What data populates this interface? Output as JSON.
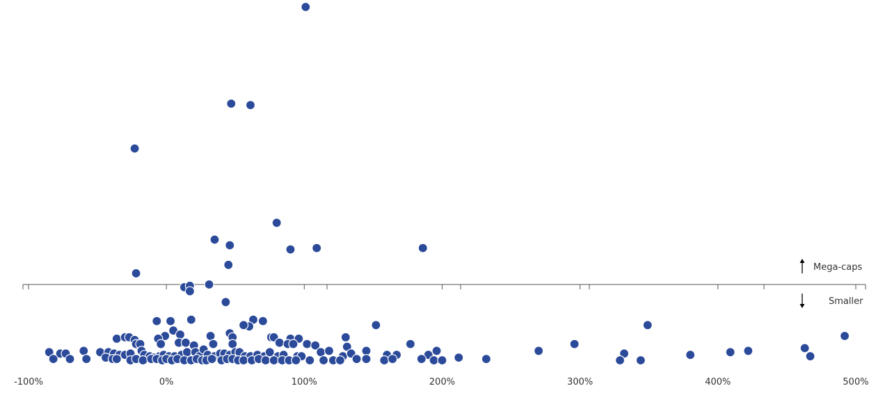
{
  "chart_data": {
    "type": "scatter",
    "title": "",
    "xlabel": "",
    "ylabel": "",
    "grid": false,
    "colors": {
      "dot": "#2b4a9a",
      "dot_stroke": "#1a2c66",
      "axis": "#555555",
      "text": "#333333"
    },
    "x_ticks": [
      "-100%",
      "0%",
      "100%",
      "200%",
      "300%",
      "400%",
      "500%"
    ],
    "x_tick_values": [
      -100,
      0,
      100,
      200,
      300,
      400,
      500
    ],
    "xlim": [
      -100,
      500
    ],
    "ylim": [
      0,
      20
    ],
    "threshold": 8.2,
    "annotations": {
      "above": "Mega-caps",
      "below": "Smaller"
    },
    "points": [
      [
        101,
        19.8
      ],
      [
        47,
        12.9
      ],
      [
        61,
        12.8
      ],
      [
        -23,
        9.7
      ],
      [
        80,
        4.4
      ],
      [
        35,
        3.2
      ],
      [
        46,
        2.8
      ],
      [
        90,
        2.5
      ],
      [
        109,
        2.6
      ],
      [
        186,
        2.6
      ],
      [
        45,
        1.4
      ],
      [
        -22,
        0.8
      ],
      [
        13,
        -0.2
      ],
      [
        17,
        -0.1
      ],
      [
        17,
        -0.5
      ],
      [
        31,
        0.0
      ],
      [
        43,
        -1.3
      ],
      [
        -7,
        -2.7
      ],
      [
        3,
        -2.7
      ],
      [
        18,
        -2.6
      ],
      [
        63,
        -2.6
      ],
      [
        70,
        -2.7
      ],
      [
        60,
        -3.1
      ],
      [
        56,
        -3.0
      ],
      [
        152,
        -3.0
      ],
      [
        349,
        -3.0
      ],
      [
        5,
        -3.4
      ],
      [
        46,
        -3.6
      ],
      [
        10,
        -3.7
      ],
      [
        -1,
        -3.8
      ],
      [
        32,
        -3.8
      ],
      [
        -36,
        -4.0
      ],
      [
        -30,
        -3.9
      ],
      [
        -27,
        -3.9
      ],
      [
        -23,
        -4.1
      ],
      [
        -6,
        -4.0
      ],
      [
        48,
        -3.9
      ],
      [
        76,
        -3.9
      ],
      [
        78,
        -3.9
      ],
      [
        90,
        -4.0
      ],
      [
        96,
        -4.0
      ],
      [
        130,
        -3.9
      ],
      [
        492,
        -3.8
      ],
      [
        -22,
        -4.4
      ],
      [
        -19,
        -4.4
      ],
      [
        -4,
        -4.4
      ],
      [
        9,
        -4.3
      ],
      [
        14,
        -4.3
      ],
      [
        20,
        -4.5
      ],
      [
        34,
        -4.4
      ],
      [
        48,
        -4.4
      ],
      [
        82,
        -4.3
      ],
      [
        88,
        -4.4
      ],
      [
        92,
        -4.4
      ],
      [
        102,
        -4.4
      ],
      [
        108,
        -4.5
      ],
      [
        131,
        -4.6
      ],
      [
        177,
        -4.4
      ],
      [
        296,
        -4.4
      ],
      [
        -85,
        -5.0
      ],
      [
        -77,
        -5.1
      ],
      [
        -73,
        -5.1
      ],
      [
        -60,
        -4.9
      ],
      [
        -48,
        -5.0
      ],
      [
        -42,
        -5.0
      ],
      [
        -38,
        -5.1
      ],
      [
        -34,
        -5.2
      ],
      [
        -30,
        -5.2
      ],
      [
        -26,
        -5.1
      ],
      [
        -18,
        -4.9
      ],
      [
        -16,
        -5.2
      ],
      [
        -12,
        -5.3
      ],
      [
        -9,
        -5.4
      ],
      [
        -5,
        -5.3
      ],
      [
        -2,
        -5.2
      ],
      [
        2,
        -5.3
      ],
      [
        6,
        -5.3
      ],
      [
        11,
        -5.2
      ],
      [
        15,
        -5.0
      ],
      [
        21,
        -5.0
      ],
      [
        24,
        -5.3
      ],
      [
        27,
        -4.8
      ],
      [
        30,
        -5.2
      ],
      [
        35,
        -5.3
      ],
      [
        39,
        -5.1
      ],
      [
        42,
        -5.1
      ],
      [
        46,
        -5.2
      ],
      [
        50,
        -5.0
      ],
      [
        53,
        -5.0
      ],
      [
        57,
        -5.3
      ],
      [
        61,
        -5.3
      ],
      [
        66,
        -5.2
      ],
      [
        71,
        -5.3
      ],
      [
        75,
        -5.0
      ],
      [
        81,
        -5.3
      ],
      [
        85,
        -5.2
      ],
      [
        95,
        -5.3
      ],
      [
        98,
        -5.3
      ],
      [
        112,
        -5.0
      ],
      [
        118,
        -4.9
      ],
      [
        128,
        -5.3
      ],
      [
        134,
        -5.1
      ],
      [
        145,
        -4.9
      ],
      [
        160,
        -5.2
      ],
      [
        167,
        -5.2
      ],
      [
        190,
        -5.2
      ],
      [
        196,
        -4.9
      ],
      [
        212,
        -5.4
      ],
      [
        270,
        -4.9
      ],
      [
        332,
        -5.1
      ],
      [
        380,
        -5.2
      ],
      [
        409,
        -5.0
      ],
      [
        422,
        -4.9
      ],
      [
        463,
        -4.7
      ],
      [
        467,
        -5.3
      ],
      [
        -82,
        -5.5
      ],
      [
        -70,
        -5.5
      ],
      [
        -58,
        -5.5
      ],
      [
        -44,
        -5.4
      ],
      [
        -39,
        -5.5
      ],
      [
        -36,
        -5.5
      ],
      [
        -26,
        -5.6
      ],
      [
        -22,
        -5.5
      ],
      [
        -17,
        -5.6
      ],
      [
        -11,
        -5.5
      ],
      [
        -7,
        -5.5
      ],
      [
        -3,
        -5.6
      ],
      [
        0,
        -5.5
      ],
      [
        4,
        -5.6
      ],
      [
        8,
        -5.5
      ],
      [
        13,
        -5.6
      ],
      [
        18,
        -5.6
      ],
      [
        22,
        -5.5
      ],
      [
        26,
        -5.6
      ],
      [
        29,
        -5.6
      ],
      [
        33,
        -5.5
      ],
      [
        40,
        -5.6
      ],
      [
        44,
        -5.5
      ],
      [
        48,
        -5.5
      ],
      [
        52,
        -5.6
      ],
      [
        56,
        -5.6
      ],
      [
        62,
        -5.6
      ],
      [
        67,
        -5.5
      ],
      [
        72,
        -5.6
      ],
      [
        78,
        -5.6
      ],
      [
        84,
        -5.6
      ],
      [
        89,
        -5.6
      ],
      [
        94,
        -5.6
      ],
      [
        104,
        -5.6
      ],
      [
        114,
        -5.6
      ],
      [
        121,
        -5.6
      ],
      [
        126,
        -5.6
      ],
      [
        138,
        -5.5
      ],
      [
        145,
        -5.5
      ],
      [
        158,
        -5.6
      ],
      [
        164,
        -5.5
      ],
      [
        185,
        -5.5
      ],
      [
        194,
        -5.6
      ],
      [
        200,
        -5.6
      ],
      [
        232,
        -5.5
      ],
      [
        329,
        -5.6
      ],
      [
        344,
        -5.6
      ]
    ]
  }
}
